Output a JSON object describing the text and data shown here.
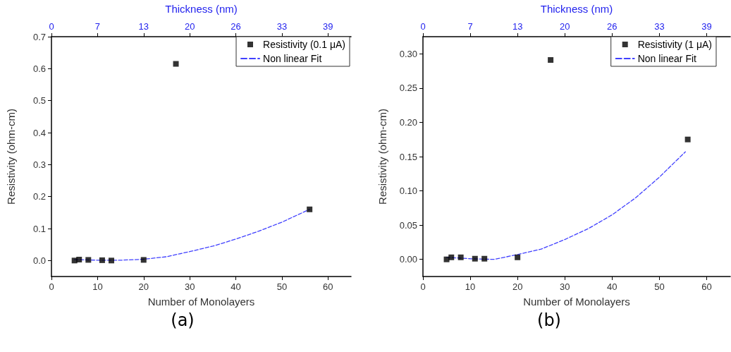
{
  "chart_data": [
    {
      "type": "scatter",
      "xlabel": "Number of Monolayers",
      "ylabel": "Resistivity (ohm-cm)",
      "x2label": "Thickness (nm)",
      "xlim": [
        0,
        65
      ],
      "xticks": [
        0,
        10,
        20,
        30,
        40,
        50,
        60
      ],
      "x2lim": [
        0,
        42.25
      ],
      "x2ticks": [
        0,
        {
          "value": 6.5,
          "label": "7"
        },
        13,
        {
          "value": 19.5,
          "label": "20"
        },
        26,
        {
          "value": 32.5,
          "label": "33"
        },
        39
      ],
      "ylim": [
        -0.05,
        0.7
      ],
      "yticks": [
        {
          "value": 0,
          "label": "0.0"
        },
        0.1,
        0.2,
        0.3,
        0.4,
        0.5,
        0.6,
        0.7
      ],
      "series": [
        {
          "name": "Resistivity (0.1 μA)",
          "color": "#000000",
          "marker": "square",
          "x": [
            5,
            6,
            8,
            11,
            13,
            20,
            27,
            56
          ],
          "values": [
            0,
            0.003,
            0.002,
            0.001,
            0,
            0.002,
            0.615,
            0.16
          ]
        },
        {
          "name": "Non linear Fit",
          "type": "line",
          "color": "#4040ff",
          "line_style": "dashed",
          "marker": "none",
          "x": [
            5,
            10,
            15,
            20,
            25,
            30,
            35,
            40,
            45,
            50,
            56
          ],
          "values": [
            0.003,
            0.001,
            0.001,
            0.004,
            0.012,
            0.028,
            0.045,
            0.067,
            0.092,
            0.12,
            0.16
          ]
        }
      ],
      "legend": "top right",
      "grid": false,
      "annotations": [
        "(a)"
      ]
    },
    {
      "type": "scatter",
      "xlabel": "Number of Monolayers",
      "ylabel": "Resistivity (ohm-cm)",
      "x2label": "Thickness (nm)",
      "xlim": [
        0,
        65
      ],
      "xticks": [
        0,
        10,
        20,
        30,
        40,
        50,
        60
      ],
      "x2lim": [
        0,
        42.25
      ],
      "x2ticks": [
        0,
        {
          "value": 6.5,
          "label": "7"
        },
        13,
        {
          "value": 19.5,
          "label": "20"
        },
        26,
        {
          "value": 32.5,
          "label": "33"
        },
        39
      ],
      "ylim": [
        -0.025,
        0.325
      ],
      "yticks": [
        {
          "value": 0,
          "label": "0.00"
        },
        {
          "value": 0.05,
          "label": "0.05"
        },
        {
          "value": 0.1,
          "label": "0.10"
        },
        {
          "value": 0.15,
          "label": "0.15"
        },
        {
          "value": 0.2,
          "label": "0.20"
        },
        {
          "value": 0.25,
          "label": "0.25"
        },
        {
          "value": 0.3,
          "label": "0.30"
        }
      ],
      "series": [
        {
          "name": "Resistivity (1 μA)",
          "color": "#000000",
          "marker": "square",
          "x": [
            5,
            6,
            8,
            11,
            13,
            20,
            27,
            56
          ],
          "values": [
            0,
            0.003,
            0.003,
            0.001,
            0.001,
            0.003,
            0.291,
            0.175
          ]
        },
        {
          "name": "Non linear Fit",
          "type": "line",
          "color": "#4040ff",
          "line_style": "dashed",
          "marker": "none",
          "x": [
            5,
            10,
            15,
            20,
            25,
            30,
            35,
            40,
            45,
            50,
            55.5
          ],
          "values": [
            0.003,
            0.001,
            0,
            0.007,
            0.015,
            0.029,
            0.045,
            0.065,
            0.09,
            0.12,
            0.157
          ]
        }
      ],
      "legend": "top right",
      "grid": false,
      "annotations": [
        "(b)"
      ]
    }
  ]
}
